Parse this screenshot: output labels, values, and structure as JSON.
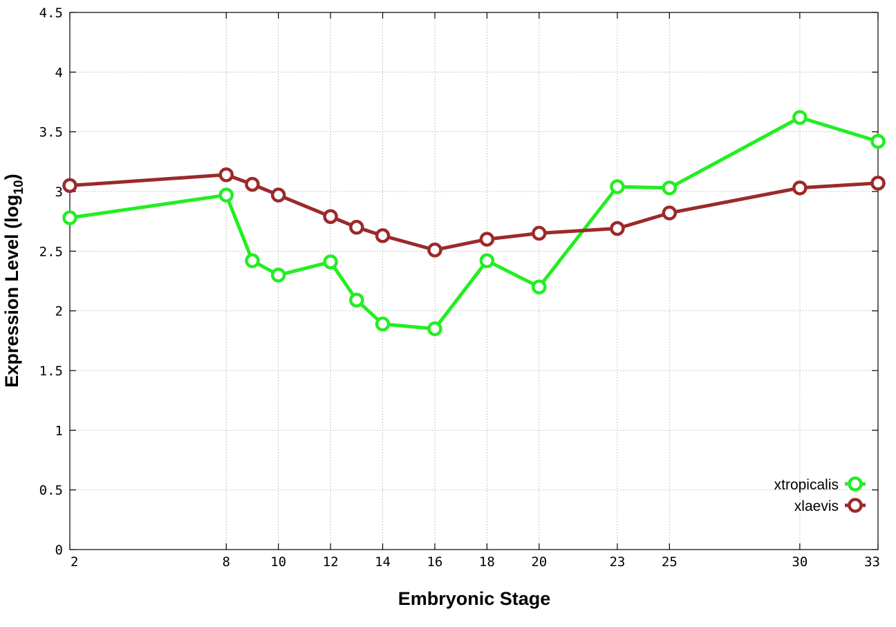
{
  "chart_data": {
    "type": "line",
    "xlabel": "Embryonic Stage",
    "ylabel_main": "Expression Level (log",
    "ylabel_sub": "10",
    "ylabel_close": ")",
    "xlim": [
      2,
      33
    ],
    "ylim": [
      0,
      4.5
    ],
    "x_ticks": [
      2,
      8,
      10,
      12,
      14,
      16,
      18,
      20,
      23,
      25,
      30,
      33
    ],
    "x_tick_labels": [
      "2",
      "8",
      "10",
      "12",
      "14",
      "16",
      "18",
      "20",
      "23",
      "25",
      "30",
      "33"
    ],
    "y_ticks": [
      0,
      0.5,
      1,
      1.5,
      2,
      2.5,
      3,
      3.5,
      4,
      4.5
    ],
    "y_tick_labels": [
      "0",
      "0.5",
      "1",
      "1.5",
      "2",
      "2.5",
      "3",
      "3.5",
      "4",
      "4.5"
    ],
    "grid": true,
    "legend_position": "bottom-right",
    "series": [
      {
        "name": "xtropicalis",
        "color": "#22ee22",
        "x": [
          2,
          8,
          9,
          10,
          12,
          13,
          14,
          16,
          18,
          20,
          23,
          25,
          30,
          33
        ],
        "y": [
          2.78,
          2.97,
          2.42,
          2.3,
          2.41,
          2.09,
          1.89,
          1.85,
          2.42,
          2.2,
          3.04,
          3.03,
          3.62,
          3.42
        ]
      },
      {
        "name": "xlaevis",
        "color": "#9b2a2a",
        "x": [
          2,
          8,
          9,
          10,
          12,
          13,
          14,
          16,
          18,
          20,
          23,
          25,
          30,
          33
        ],
        "y": [
          3.05,
          3.14,
          3.06,
          2.97,
          2.79,
          2.7,
          2.63,
          2.51,
          2.6,
          2.65,
          2.69,
          2.82,
          3.03,
          3.07
        ]
      }
    ]
  }
}
